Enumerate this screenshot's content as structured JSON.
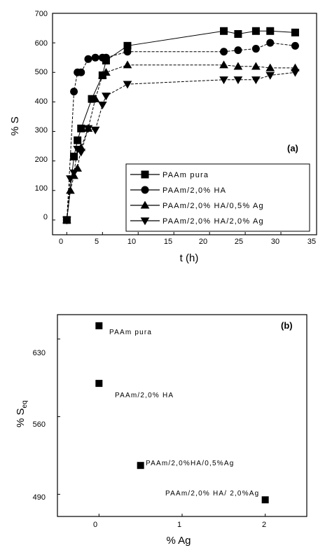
{
  "chart_data": [
    {
      "type": "line",
      "panel_label": "(a)",
      "xlabel": "t (h)",
      "ylabel": "% S",
      "xlim": [
        -2,
        35
      ],
      "ylim": [
        -50,
        700
      ],
      "xticks": [
        "0",
        "5",
        "10",
        "15",
        "20",
        "25",
        "30",
        "35"
      ],
      "yticks": [
        "0",
        "100",
        "200",
        "300",
        "400",
        "500",
        "600",
        "700"
      ],
      "legend_position": "bottom-right",
      "series": [
        {
          "name": "PAAm pura",
          "marker": "square",
          "x": [
            0,
            1,
            1.5,
            2,
            3.5,
            5,
            5.5,
            8.5,
            22,
            24,
            26.5,
            28.5,
            32
          ],
          "y": [
            0,
            215,
            270,
            310,
            410,
            490,
            540,
            590,
            640,
            630,
            640,
            640,
            635
          ]
        },
        {
          "name": "PAAm/2,0% HA",
          "marker": "circle",
          "x": [
            0,
            1,
            1.5,
            2,
            3,
            4,
            5,
            5.5,
            8.5,
            22,
            24,
            26.5,
            28.5,
            32
          ],
          "y": [
            0,
            435,
            500,
            500,
            545,
            550,
            550,
            550,
            570,
            570,
            575,
            580,
            600,
            590
          ]
        },
        {
          "name": "PAAm/2,0% HA/0,5% Ag",
          "marker": "triangle-up",
          "x": [
            0,
            0.5,
            1,
            1.5,
            2,
            3,
            4,
            5,
            5.5,
            8.5,
            22,
            24,
            26.5,
            28.5,
            32
          ],
          "y": [
            0,
            100,
            150,
            175,
            245,
            310,
            410,
            490,
            500,
            525,
            525,
            520,
            520,
            515,
            515
          ]
        },
        {
          "name": "PAAm/2,0% HA/2,0% Ag",
          "marker": "triangle-down",
          "x": [
            0,
            0.5,
            1,
            1.5,
            2,
            3,
            4,
            5,
            5.5,
            8.5,
            22,
            24,
            26.5,
            28.5,
            32
          ],
          "y": [
            0,
            140,
            160,
            240,
            230,
            310,
            305,
            390,
            420,
            460,
            475,
            475,
            475,
            490,
            500
          ]
        }
      ]
    },
    {
      "type": "scatter",
      "panel_label": "(b)",
      "xlabel": "% Ag",
      "ylabel_main": "% S",
      "ylabel_sub": "eq",
      "xlim": [
        -0.5,
        2.5
      ],
      "ylim": [
        470,
        652
      ],
      "xticks": [
        "0",
        "1",
        "2"
      ],
      "yticks": [
        "490",
        "560",
        "630"
      ],
      "points": [
        {
          "label": "PAAm pura",
          "x": 0,
          "y": 642
        },
        {
          "label": "PAAm/2,0% HA",
          "x": 0,
          "y": 590
        },
        {
          "label": "PAAm/2,0%HA/0,5%Ag",
          "x": 0.5,
          "y": 516
        },
        {
          "label": "PAAm/2,0% HA/ 2,0%Ag",
          "x": 2,
          "y": 485
        }
      ]
    }
  ]
}
